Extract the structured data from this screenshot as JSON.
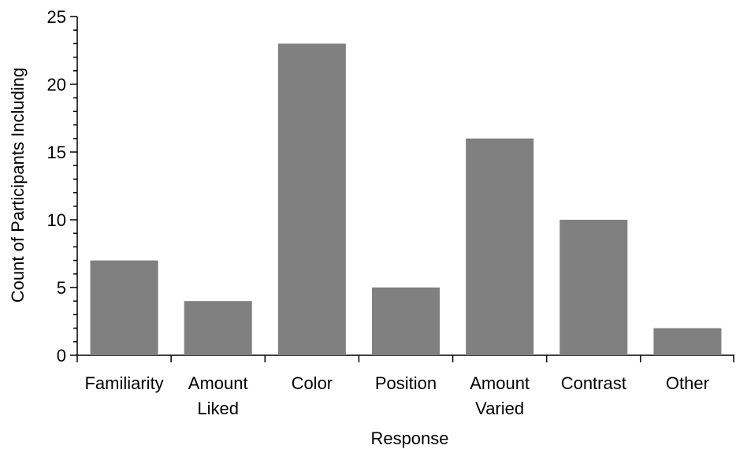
{
  "chart_data": {
    "type": "bar",
    "title": "",
    "xlabel": "Response",
    "ylabel": "Count of Participants Including",
    "ylim": [
      0,
      25
    ],
    "yticks": [
      0,
      5,
      10,
      15,
      20,
      25
    ],
    "categories": [
      [
        "Familiarity"
      ],
      [
        "Amount",
        "Liked"
      ],
      [
        "Color"
      ],
      [
        "Position"
      ],
      [
        "Amount",
        "Varied"
      ],
      [
        "Contrast"
      ],
      [
        "Other"
      ]
    ],
    "values": [
      7,
      4,
      23,
      5,
      16,
      10,
      2
    ],
    "bar_color": "#808080",
    "grid": false,
    "legend": "none"
  }
}
